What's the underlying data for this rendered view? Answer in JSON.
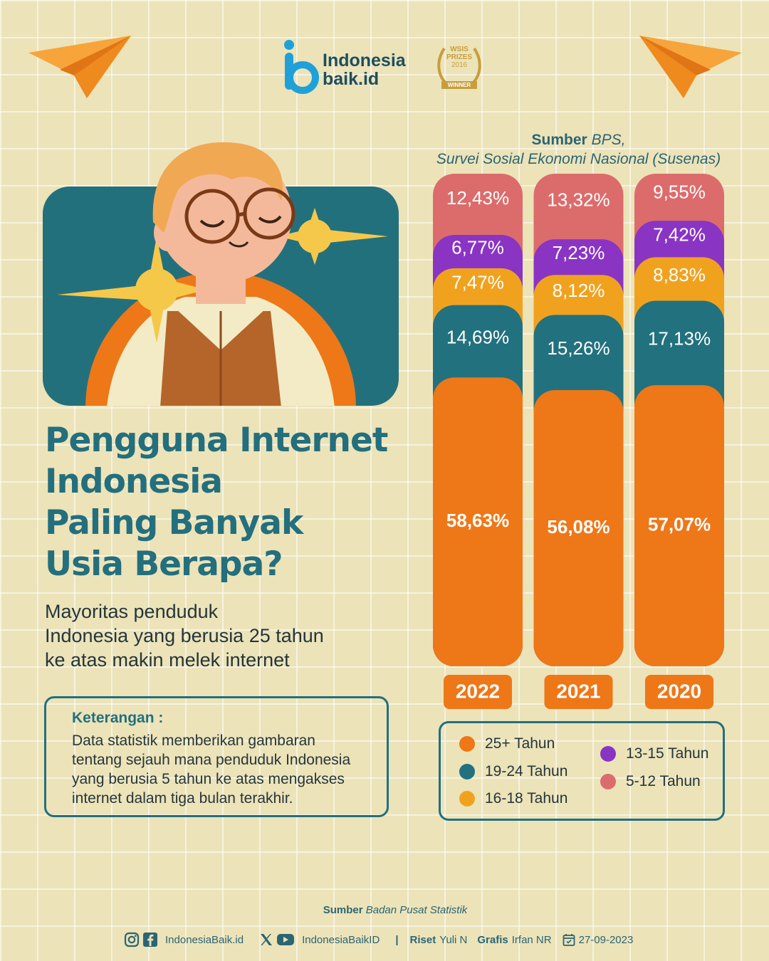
{
  "brand": {
    "line1": "Indonesia",
    "line2": "baik.id"
  },
  "award": {
    "line1": "WSIS",
    "line2": "PRIZES",
    "line3": "2016",
    "ribbon": "WINNER"
  },
  "source_top": {
    "label": "Sumber",
    "org": "BPS,",
    "survey": "Survei Sosial Ekonomi Nasional (Susenas)"
  },
  "title": {
    "line1": "Pengguna Internet",
    "line2": "Indonesia",
    "line3": "Paling Banyak",
    "line4": "Usia Berapa?"
  },
  "subtitle": {
    "line1": "Mayoritas penduduk",
    "line2": "Indonesia yang berusia 25 tahun",
    "line3": "ke atas makin melek internet"
  },
  "note": {
    "title": "Keterangan  :",
    "line1": "Data statistik memberikan gambaran",
    "line2": "tentang sejauh mana penduduk Indonesia",
    "line3": "yang berusia 5 tahun ke atas mengakses",
    "line4": "internet dalam tiga bulan terakhir."
  },
  "colors": {
    "age_25_plus": "#ee7718",
    "age_19_24": "#22717e",
    "age_16_18": "#f0a21f",
    "age_13_15": "#8a34c4",
    "age_5_12": "#dc6c6c",
    "title": "#236f7d",
    "background": "#ece3b9"
  },
  "chart_data": {
    "type": "bar",
    "stacked": true,
    "unit": "%",
    "categories": [
      "2022",
      "2021",
      "2020"
    ],
    "series": [
      {
        "name": "25+ Tahun",
        "values": [
          58.63,
          56.08,
          57.07
        ],
        "labels": [
          "58,63%",
          "56,08%",
          "57,07%"
        ]
      },
      {
        "name": "19-24 Tahun",
        "values": [
          14.69,
          15.26,
          17.13
        ],
        "labels": [
          "14,69%",
          "15,26%",
          "17,13%"
        ]
      },
      {
        "name": "16-18 Tahun",
        "values": [
          7.47,
          8.12,
          8.83
        ],
        "labels": [
          "7,47%",
          "8,12%",
          "8,83%"
        ]
      },
      {
        "name": "13-15 Tahun",
        "values": [
          6.77,
          7.23,
          7.42
        ],
        "labels": [
          "6,77%",
          "7,23%",
          "7,42%"
        ]
      },
      {
        "name": "5-12 Tahun",
        "values": [
          12.43,
          13.32,
          9.55
        ],
        "labels": [
          "12,43%",
          "13,32%",
          "9,55%"
        ]
      }
    ]
  },
  "legend": {
    "items": [
      "25+ Tahun",
      "19-24 Tahun",
      "16-18 Tahun",
      "13-15 Tahun",
      "5-12 Tahun"
    ]
  },
  "source_bottom": {
    "label": "Sumber",
    "org": "Badan Pusat Statistik"
  },
  "footer": {
    "handle1": "IndonesiaBaik.id",
    "handle2": "IndonesiaBaikID",
    "separator": "|",
    "riset_label": "Riset",
    "riset_name": "Yuli N",
    "grafis_label": "Grafis",
    "grafis_name": "Irfan NR",
    "date": "27-09-2023"
  }
}
